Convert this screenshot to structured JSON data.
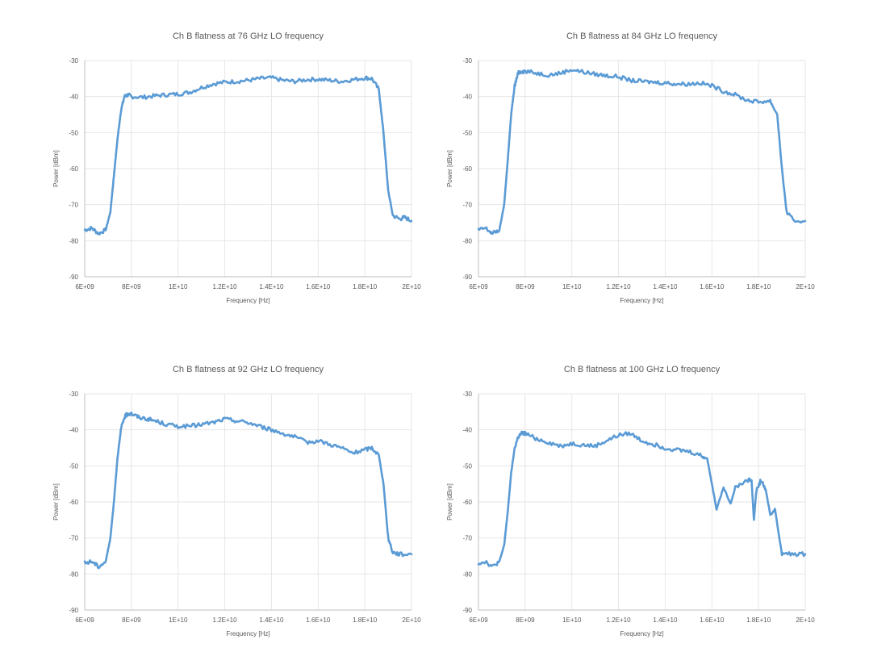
{
  "colors": {
    "series": "#5b9bd5",
    "grid": "#e6e6e6",
    "text": "#595959"
  },
  "chart_data": [
    {
      "type": "line",
      "title": "Ch B flatness at 76 GHz LO frequency",
      "xlabel": "Frequency [Hz]",
      "ylabel": "Power [dBm]",
      "xlim": [
        6000000000.0,
        20000000000.0
      ],
      "ylim": [
        -90,
        -30
      ],
      "xticks": [
        6000000000.0,
        8000000000.0,
        10000000000.0,
        12000000000.0,
        14000000000.0,
        16000000000.0,
        18000000000.0,
        20000000000.0
      ],
      "xtick_labels": [
        "6E+09",
        "8E+09",
        "1E+10",
        "1.2E+10",
        "1.4E+10",
        "1.6E+10",
        "1.8E+10",
        "2E+10"
      ],
      "yticks": [
        -90,
        -80,
        -70,
        -60,
        -50,
        -40,
        -30
      ],
      "ytick_labels": [
        "-90",
        "-80",
        "-70",
        "-60",
        "-50",
        "-40",
        "-30"
      ],
      "grid": true,
      "legend": "none",
      "series": [
        {
          "x": [
            6000000000.0,
            6300000000.0,
            6600000000.0,
            6900000000.0,
            7100000000.0,
            7250000000.0,
            7400000000.0,
            7550000000.0,
            7700000000.0,
            7850000000.0,
            8000000000.0,
            8500000000.0,
            9000000000.0,
            9500000000.0,
            10000000000.0,
            10500000000.0,
            11000000000.0,
            11500000000.0,
            12000000000.0,
            12500000000.0,
            13000000000.0,
            13500000000.0,
            14000000000.0,
            14500000000.0,
            15000000000.0,
            15500000000.0,
            16000000000.0,
            16500000000.0,
            17000000000.0,
            17500000000.0,
            18000000000.0,
            18300000000.0,
            18600000000.0,
            18800000000.0,
            19000000000.0,
            19200000000.0,
            19500000000.0,
            19700000000.0,
            20000000000.0
          ],
          "y": [
            -77,
            -76.5,
            -78,
            -77,
            -72,
            -62,
            -52,
            -44,
            -40,
            -39.5,
            -40,
            -40.2,
            -39.8,
            -39.5,
            -39.3,
            -38.8,
            -37.5,
            -36.5,
            -36,
            -35.8,
            -35.5,
            -35,
            -34.8,
            -35.5,
            -35.8,
            -35.3,
            -35.2,
            -35.5,
            -35.8,
            -35.3,
            -34.8,
            -35,
            -38,
            -50,
            -66,
            -73,
            -74,
            -73.5,
            -74.5
          ]
        }
      ]
    },
    {
      "type": "line",
      "title": "Ch B flatness at 84 GHz LO frequency",
      "xlabel": "Frequency [Hz]",
      "ylabel": "Power [dBm]",
      "xlim": [
        6000000000.0,
        20000000000.0
      ],
      "ylim": [
        -90,
        -30
      ],
      "xticks": [
        6000000000.0,
        8000000000.0,
        10000000000.0,
        12000000000.0,
        14000000000.0,
        16000000000.0,
        18000000000.0,
        20000000000.0
      ],
      "xtick_labels": [
        "6E+09",
        "8E+09",
        "1E+10",
        "1.2E+10",
        "1.4E+10",
        "1.6E+10",
        "1.8E+10",
        "2E+10"
      ],
      "yticks": [
        -90,
        -80,
        -70,
        -60,
        -50,
        -40,
        -30
      ],
      "ytick_labels": [
        "-90",
        "-80",
        "-70",
        "-60",
        "-50",
        "-40",
        "-30"
      ],
      "grid": true,
      "legend": "none",
      "series": [
        {
          "x": [
            6000000000.0,
            6300000000.0,
            6600000000.0,
            6900000000.0,
            7100000000.0,
            7250000000.0,
            7400000000.0,
            7550000000.0,
            7700000000.0,
            7850000000.0,
            8000000000.0,
            8500000000.0,
            9000000000.0,
            9500000000.0,
            10000000000.0,
            10500000000.0,
            11000000000.0,
            11500000000.0,
            12000000000.0,
            12500000000.0,
            13000000000.0,
            13500000000.0,
            14000000000.0,
            14500000000.0,
            15000000000.0,
            15500000000.0,
            16000000000.0,
            16500000000.0,
            17000000000.0,
            17500000000.0,
            18000000000.0,
            18500000000.0,
            18800000000.0,
            19000000000.0,
            19200000000.0,
            19500000000.0,
            20000000000.0
          ],
          "y": [
            -77,
            -76.5,
            -78,
            -77,
            -70,
            -58,
            -45,
            -37,
            -33.5,
            -33,
            -33,
            -33.5,
            -34,
            -33.5,
            -32.5,
            -33.2,
            -33.8,
            -34.2,
            -34.5,
            -35.5,
            -35.8,
            -36,
            -36.2,
            -36.5,
            -36.5,
            -36.2,
            -37,
            -38.5,
            -39.5,
            -41,
            -41.5,
            -41.2,
            -45,
            -60,
            -72,
            -74.5,
            -74.5
          ]
        }
      ]
    },
    {
      "type": "line",
      "title": "Ch B flatness at 92 GHz LO frequency",
      "xlabel": "Frequency [Hz]",
      "ylabel": "Power [dBm]",
      "xlim": [
        6000000000.0,
        20000000000.0
      ],
      "ylim": [
        -90,
        -30
      ],
      "xticks": [
        6000000000.0,
        8000000000.0,
        10000000000.0,
        12000000000.0,
        14000000000.0,
        16000000000.0,
        18000000000.0,
        20000000000.0
      ],
      "xtick_labels": [
        "6E+09",
        "8E+09",
        "1E+10",
        "1.2E+10",
        "1.4E+10",
        "1.6E+10",
        "1.8E+10",
        "2E+10"
      ],
      "yticks": [
        -90,
        -80,
        -70,
        -60,
        -50,
        -40,
        -30
      ],
      "ytick_labels": [
        "-90",
        "-80",
        "-70",
        "-60",
        "-50",
        "-40",
        "-30"
      ],
      "grid": true,
      "legend": "none",
      "series": [
        {
          "x": [
            6000000000.0,
            6300000000.0,
            6600000000.0,
            6900000000.0,
            7100000000.0,
            7250000000.0,
            7400000000.0,
            7550000000.0,
            7700000000.0,
            7850000000.0,
            8000000000.0,
            8300000000.0,
            8700000000.0,
            9000000000.0,
            9500000000.0,
            10000000000.0,
            10500000000.0,
            11000000000.0,
            11500000000.0,
            12000000000.0,
            12500000000.0,
            13000000000.0,
            13500000000.0,
            14000000000.0,
            14500000000.0,
            15000000000.0,
            15500000000.0,
            16000000000.0,
            16500000000.0,
            17000000000.0,
            17500000000.0,
            18000000000.0,
            18300000000.0,
            18600000000.0,
            18800000000.0,
            19000000000.0,
            19200000000.0,
            19500000000.0,
            20000000000.0
          ],
          "y": [
            -77,
            -76.5,
            -78,
            -76.5,
            -70,
            -60,
            -48,
            -40,
            -36.5,
            -35.5,
            -35.5,
            -36.5,
            -37,
            -37.5,
            -38.5,
            -39,
            -39,
            -38.5,
            -38,
            -37,
            -37.5,
            -38,
            -39,
            -40,
            -41,
            -42,
            -43.5,
            -43,
            -44,
            -45,
            -46.5,
            -45.5,
            -45,
            -47,
            -55,
            -70,
            -74,
            -74.5,
            -74.5
          ]
        }
      ]
    },
    {
      "type": "line",
      "title": "Ch B flatness at 100 GHz LO frequency",
      "xlabel": "Frequency [Hz]",
      "ylabel": "Power [dBm]",
      "xlim": [
        6000000000.0,
        20000000000.0
      ],
      "ylim": [
        -90,
        -30
      ],
      "xticks": [
        6000000000.0,
        8000000000.0,
        10000000000.0,
        12000000000.0,
        14000000000.0,
        16000000000.0,
        18000000000.0,
        20000000000.0
      ],
      "xtick_labels": [
        "6E+09",
        "8E+09",
        "1E+10",
        "1.2E+10",
        "1.4E+10",
        "1.6E+10",
        "1.8E+10",
        "2E+10"
      ],
      "yticks": [
        -90,
        -80,
        -70,
        -60,
        -50,
        -40,
        -30
      ],
      "ytick_labels": [
        "-90",
        "-80",
        "-70",
        "-60",
        "-50",
        "-40",
        "-30"
      ],
      "grid": true,
      "legend": "none",
      "series": [
        {
          "x": [
            6000000000.0,
            6300000000.0,
            6600000000.0,
            6900000000.0,
            7100000000.0,
            7250000000.0,
            7400000000.0,
            7550000000.0,
            7700000000.0,
            7850000000.0,
            8000000000.0,
            8500000000.0,
            9000000000.0,
            9500000000.0,
            10000000000.0,
            10500000000.0,
            11000000000.0,
            11500000000.0,
            12000000000.0,
            12500000000.0,
            13000000000.0,
            13500000000.0,
            14000000000.0,
            14500000000.0,
            15000000000.0,
            15500000000.0,
            15800000000.0,
            16000000000.0,
            16200000000.0,
            16500000000.0,
            16800000000.0,
            17000000000.0,
            17500000000.0,
            17700000000.0,
            17800000000.0,
            17900000000.0,
            18100000000.0,
            18300000000.0,
            18500000000.0,
            18700000000.0,
            19000000000.0,
            19500000000.0,
            20000000000.0
          ],
          "y": [
            -77,
            -76.5,
            -78,
            -76.5,
            -72,
            -63,
            -52,
            -45,
            -42,
            -41,
            -41,
            -42.5,
            -43.5,
            -44.5,
            -43.8,
            -44.2,
            -44.5,
            -43,
            -41.5,
            -41,
            -43,
            -44,
            -45,
            -45.5,
            -46,
            -47,
            -48,
            -55,
            -62,
            -56,
            -60.5,
            -56,
            -54,
            -54,
            -65,
            -57,
            -54,
            -56.5,
            -63.5,
            -62,
            -74.5,
            -74.5,
            -74.5
          ]
        }
      ]
    }
  ]
}
